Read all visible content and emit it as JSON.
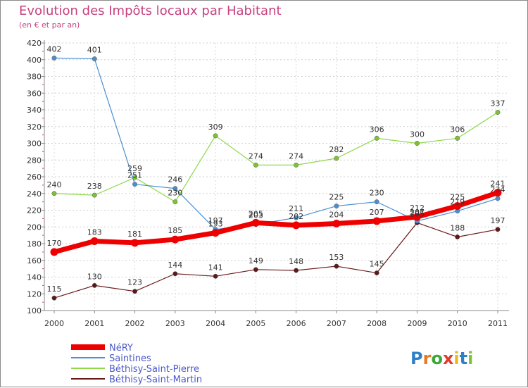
{
  "title": "Evolution des Impôts locaux par Habitant",
  "subtitle": "(en € et par an)",
  "logo": {
    "letters": [
      "P",
      "r",
      "o",
      "x",
      "i",
      "t",
      "i"
    ],
    "colors": [
      "#2f7fc8",
      "#e87a1e",
      "#3aa83a",
      "#e03a2e",
      "#e8b81e",
      "#2f7fc8",
      "#7cc234"
    ]
  },
  "chart_data": {
    "type": "line",
    "title": "Evolution des Impôts locaux par Habitant",
    "subtitle": "(en € et par an)",
    "xlabel": "",
    "ylabel": "",
    "ylim": [
      100,
      420
    ],
    "yticks": [
      100,
      120,
      140,
      160,
      180,
      200,
      220,
      240,
      260,
      280,
      300,
      320,
      340,
      360,
      380,
      400,
      420
    ],
    "categories": [
      "2000",
      "2001",
      "2002",
      "2003",
      "2004",
      "2005",
      "2006",
      "2007",
      "2008",
      "2009",
      "2010",
      "2011"
    ],
    "grid": "horizontal dashed",
    "legend_position": "bottom-left",
    "series": [
      {
        "name": "NéRY",
        "color": "#ee0000",
        "width": 7,
        "marker_color": "#ee0000",
        "values": [
          170,
          183,
          181,
          185,
          193,
          205,
          202,
          204,
          207,
          212,
          225,
          241
        ],
        "labels": [
          "170",
          "183",
          "181",
          "185",
          "193",
          "205",
          "202",
          "204",
          "207",
          "212",
          "225",
          "241"
        ]
      },
      {
        "name": "Saintines",
        "color": "#4a90d0",
        "width": 1.2,
        "marker_color": "#4a90d0",
        "values": [
          402,
          401,
          251,
          246,
          197,
          203,
          211,
          225,
          230,
          207,
          219,
          234
        ],
        "labels": [
          "402",
          "401",
          "251",
          "246",
          "197",
          "203",
          "211",
          "225",
          "230",
          "207",
          "219",
          "234"
        ]
      },
      {
        "name": "Béthisy-Saint-Pierre",
        "color": "#8ed84a",
        "width": 1.2,
        "marker_color": "#7cc234",
        "values": [
          240,
          238,
          259,
          230,
          309,
          274,
          274,
          282,
          306,
          300,
          306,
          337
        ],
        "labels": [
          "240",
          "238",
          "259",
          "230",
          "309",
          "274",
          "274",
          "282",
          "306",
          "300",
          "306",
          "337"
        ]
      },
      {
        "name": "Béthisy-Saint-Martin",
        "color": "#6b1a1a",
        "width": 1.2,
        "marker_color": "#5a1a1a",
        "values": [
          115,
          130,
          123,
          144,
          141,
          149,
          148,
          153,
          145,
          205,
          188,
          197
        ],
        "labels": [
          "115",
          "130",
          "123",
          "144",
          "141",
          "149",
          "148",
          "153",
          "145",
          "205",
          "188",
          "197"
        ]
      }
    ]
  }
}
